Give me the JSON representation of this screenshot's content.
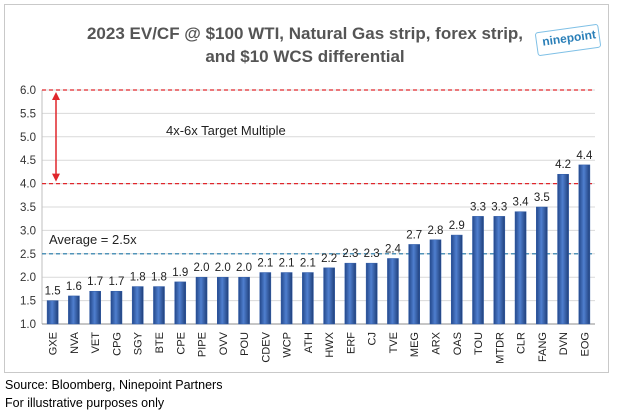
{
  "chart_data": {
    "type": "bar",
    "title_line1": "2023 EV/CF @ $100 WTI, Natural Gas strip, forex strip,",
    "title_line2": "and $10 WCS differential",
    "categories": [
      "GXE",
      "NVA",
      "VET",
      "CPG",
      "SGY",
      "BTE",
      "CPE",
      "PIPE",
      "OVV",
      "POU",
      "CDEV",
      "WCP",
      "ATH",
      "HWX",
      "ERF",
      "CJ",
      "TVE",
      "MEG",
      "ARX",
      "OAS",
      "TOU",
      "MTDR",
      "CLR",
      "FANG",
      "DVN",
      "EOG"
    ],
    "values": [
      1.5,
      1.6,
      1.7,
      1.7,
      1.8,
      1.8,
      1.9,
      2.0,
      2.0,
      2.0,
      2.1,
      2.1,
      2.1,
      2.2,
      2.3,
      2.3,
      2.4,
      2.7,
      2.8,
      2.9,
      3.3,
      3.3,
      3.4,
      3.5,
      4.2,
      4.4
    ],
    "data_labels": [
      "1.5",
      "1.6",
      "1.7",
      "1.7",
      "1.8",
      "1.8",
      "1.9",
      "2.0",
      "2.0",
      "2.0",
      "2.1",
      "2.1",
      "2.1",
      "2.2",
      "2.3",
      "2.3",
      "2.4",
      "2.7",
      "2.8",
      "2.9",
      "3.3",
      "3.3",
      "3.4",
      "3.5",
      "4.2",
      "4.4"
    ],
    "ylim": [
      1.0,
      6.0
    ],
    "yticks": [
      "1.0",
      "1.5",
      "2.0",
      "2.5",
      "3.0",
      "3.5",
      "4.0",
      "4.5",
      "5.0",
      "5.5",
      "6.0"
    ],
    "ytick_values": [
      1.0,
      1.5,
      2.0,
      2.5,
      3.0,
      3.5,
      4.0,
      4.5,
      5.0,
      5.5,
      6.0
    ],
    "reference_lines": [
      {
        "name": "target-high",
        "value": 6.0,
        "color": "#e0262b"
      },
      {
        "name": "target-low",
        "value": 4.0,
        "color": "#e0262b"
      },
      {
        "name": "average",
        "value": 2.5,
        "color": "#1f77a8"
      }
    ],
    "target_annotation": "4x-6x Target Multiple",
    "average_annotation": "Average = 2.5x",
    "bar_color": "#2e5aa6"
  },
  "logo_text": "ninepoint",
  "source_text": "Source: Bloomberg, Ninepoint Partners",
  "note_text": "For illustrative purposes only"
}
